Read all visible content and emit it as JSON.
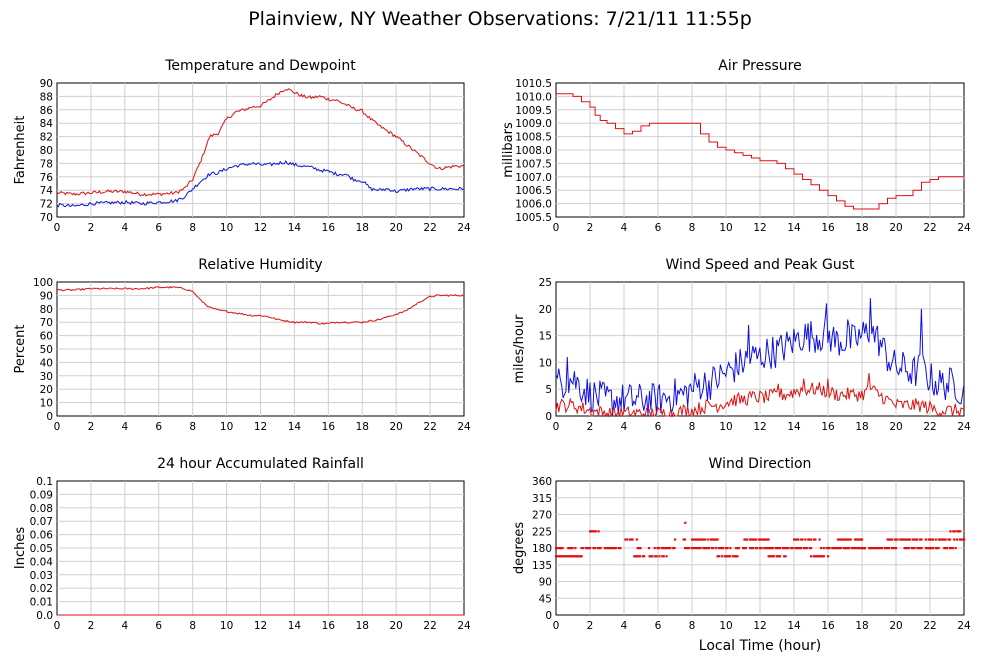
{
  "title": "Plainview, NY Weather Observations: 7/21/11 11:55p",
  "xlabel": "Local Time (hour)",
  "chart_data": [
    {
      "id": "temp",
      "type": "line",
      "title": "Temperature and Dewpoint",
      "ylabel": "Fahrenheit",
      "xlabel": "",
      "xlim": [
        0,
        24
      ],
      "ylim": [
        70,
        90
      ],
      "yticks": [
        "70",
        "72",
        "74",
        "76",
        "78",
        "80",
        "82",
        "84",
        "86",
        "88",
        "90"
      ],
      "xticks": [
        "0",
        "2",
        "4",
        "6",
        "8",
        "10",
        "12",
        "14",
        "16",
        "18",
        "20",
        "22",
        "24"
      ],
      "grid": true,
      "series": [
        {
          "color": "#e01010",
          "x": [
            0,
            1,
            2,
            3,
            4,
            5,
            6,
            7,
            7.5,
            8,
            8.5,
            9,
            9.5,
            10,
            10.5,
            11,
            11.5,
            12,
            12.5,
            13,
            13.5,
            14,
            14.5,
            15,
            15.5,
            16,
            16.5,
            17,
            17.5,
            18,
            18.5,
            19,
            19.5,
            20,
            20.5,
            21,
            21.5,
            22,
            22.5,
            23,
            23.5,
            24
          ],
          "y": [
            73.6,
            73.4,
            73.6,
            73.8,
            73.8,
            73.4,
            73.4,
            73.6,
            74.2,
            75.6,
            78.5,
            82.0,
            82.5,
            84.6,
            85.6,
            86.0,
            86.4,
            86.6,
            87.4,
            88.4,
            89.2,
            88.6,
            88.0,
            87.8,
            88.0,
            87.6,
            87.4,
            86.8,
            86.2,
            85.8,
            84.6,
            83.6,
            82.8,
            82.0,
            81.0,
            80.0,
            79.0,
            78.0,
            77.2,
            77.4,
            77.6,
            77.6
          ],
          "noise": 0.25
        },
        {
          "color": "#1010e0",
          "x": [
            0,
            1,
            2,
            3,
            4,
            5,
            6,
            7,
            7.5,
            8,
            8.5,
            9,
            9.5,
            10,
            10.5,
            11,
            11.5,
            12,
            12.5,
            13,
            13.5,
            14,
            14.5,
            15,
            15.5,
            16,
            16.5,
            17,
            17.5,
            18,
            18.5,
            19,
            19.5,
            20,
            20.5,
            21,
            21.5,
            22,
            22.5,
            23,
            23.5,
            24
          ],
          "y": [
            71.8,
            71.6,
            72.0,
            72.1,
            72.2,
            72.0,
            72.2,
            72.4,
            73.0,
            74.2,
            75.4,
            76.4,
            76.6,
            77.2,
            77.6,
            77.8,
            78.0,
            77.8,
            77.8,
            78.0,
            78.2,
            77.8,
            77.6,
            77.4,
            77.0,
            76.8,
            76.4,
            76.4,
            75.6,
            75.4,
            74.2,
            74.0,
            74.2,
            73.8,
            74.0,
            74.2,
            74.2,
            74.2,
            74.2,
            74.2,
            74.2,
            74.2
          ],
          "noise": 0.25
        }
      ]
    },
    {
      "id": "pressure",
      "type": "line",
      "title": "Air Pressure",
      "ylabel": "millibars",
      "xlabel": "",
      "xlim": [
        0,
        24
      ],
      "ylim": [
        1005.5,
        1010.5
      ],
      "yticks": [
        "1005.5",
        "1006.0",
        "1006.5",
        "1007.0",
        "1007.5",
        "1008.0",
        "1008.5",
        "1009.0",
        "1009.5",
        "1010.0",
        "1010.5"
      ],
      "xticks": [
        "0",
        "2",
        "4",
        "6",
        "8",
        "10",
        "12",
        "14",
        "16",
        "18",
        "20",
        "22",
        "24"
      ],
      "grid": true,
      "series": [
        {
          "color": "#e01010",
          "step": true,
          "x": [
            0,
            0.5,
            1,
            1.5,
            2,
            2.3,
            2.6,
            3,
            3.5,
            4,
            4.5,
            5,
            5.5,
            6,
            7,
            7.5,
            8,
            8.5,
            9,
            9.5,
            10,
            10.5,
            11,
            11.5,
            12,
            12.5,
            13,
            13.5,
            14,
            14.5,
            15,
            15.5,
            16,
            16.5,
            17,
            17.5,
            18,
            18.5,
            19,
            19.5,
            20,
            20.5,
            21,
            21.5,
            22,
            22.5,
            23,
            23.5,
            24
          ],
          "y": [
            1010.1,
            1010.1,
            1010.0,
            1009.8,
            1009.6,
            1009.3,
            1009.1,
            1009.0,
            1008.8,
            1008.6,
            1008.7,
            1008.9,
            1009.0,
            1009.0,
            1009.0,
            1009.0,
            1009.0,
            1008.6,
            1008.3,
            1008.1,
            1008.0,
            1007.9,
            1007.8,
            1007.7,
            1007.6,
            1007.6,
            1007.5,
            1007.3,
            1007.1,
            1006.9,
            1006.7,
            1006.5,
            1006.3,
            1006.1,
            1005.9,
            1005.8,
            1005.8,
            1005.8,
            1006.0,
            1006.2,
            1006.3,
            1006.3,
            1006.5,
            1006.8,
            1006.9,
            1007.0,
            1007.0,
            1007.0,
            1006.9
          ],
          "noise": 0
        }
      ]
    },
    {
      "id": "humidity",
      "type": "line",
      "title": "Relative Humidity",
      "ylabel": "Percent",
      "xlabel": "",
      "xlim": [
        0,
        24
      ],
      "ylim": [
        0,
        100
      ],
      "yticks": [
        "0",
        "10",
        "20",
        "30",
        "40",
        "50",
        "60",
        "70",
        "80",
        "90",
        "100"
      ],
      "xticks": [
        "0",
        "2",
        "4",
        "6",
        "8",
        "10",
        "12",
        "14",
        "16",
        "18",
        "20",
        "22",
        "24"
      ],
      "grid": true,
      "series": [
        {
          "color": "#e01010",
          "x": [
            0,
            1,
            2,
            3,
            4,
            5,
            6,
            7,
            7.5,
            8,
            8.5,
            9,
            9.5,
            10,
            10.5,
            11,
            11.5,
            12,
            12.5,
            13,
            13.5,
            14,
            14.5,
            15,
            15.5,
            16,
            16.5,
            17,
            17.5,
            18,
            18.5,
            19,
            19.5,
            20,
            20.5,
            21,
            21.5,
            22,
            22.5,
            23,
            23.5,
            24
          ],
          "y": [
            94,
            94,
            95,
            95,
            95,
            95,
            96,
            96,
            95,
            93,
            86,
            81,
            79,
            78,
            77,
            76,
            75,
            75,
            74,
            72,
            71,
            70,
            70,
            70,
            69,
            69,
            70,
            70,
            70,
            70,
            71,
            72,
            74,
            76,
            78,
            82,
            86,
            89,
            90,
            90,
            90,
            90
          ],
          "noise": 0.6
        }
      ]
    },
    {
      "id": "wind",
      "type": "line",
      "title": "Wind Speed and Peak Gust",
      "ylabel": "miles/hour",
      "xlabel": "",
      "xlim": [
        0,
        24
      ],
      "ylim": [
        0,
        25
      ],
      "yticks": [
        "0",
        "5",
        "10",
        "15",
        "20",
        "25"
      ],
      "xticks": [
        "0",
        "2",
        "4",
        "6",
        "8",
        "10",
        "12",
        "14",
        "16",
        "18",
        "20",
        "22",
        "24"
      ],
      "grid": true,
      "series": [
        {
          "color": "#1010e0",
          "x": [
            0,
            1,
            2,
            3,
            4,
            5,
            6,
            7,
            7.5,
            8,
            8.5,
            9,
            9.5,
            10,
            10.5,
            11,
            11.5,
            12,
            12.5,
            13,
            13.5,
            14,
            14.5,
            15,
            15.5,
            16,
            16.5,
            17,
            17.5,
            18,
            18.5,
            19,
            19.5,
            20,
            20.5,
            21,
            21.5,
            22,
            22.5,
            23,
            23.5,
            24
          ],
          "y": [
            6,
            7,
            4,
            3,
            3,
            3,
            3,
            4,
            4,
            5,
            6,
            6,
            7,
            8,
            9,
            10,
            11,
            11,
            12,
            12,
            13,
            14,
            15,
            15,
            15,
            15,
            14,
            14,
            14,
            15,
            16,
            14,
            11,
            9,
            9,
            8,
            9,
            7,
            6,
            6,
            6,
            4
          ],
          "noise": 3.2,
          "peaks": [
            [
              0.7,
              11
            ],
            [
              15.9,
              21
            ],
            [
              18.5,
              22
            ],
            [
              21.5,
              20
            ],
            [
              11.3,
              17
            ],
            [
              17.2,
              18
            ]
          ]
        },
        {
          "color": "#e01010",
          "x": [
            0,
            1,
            2,
            3,
            4,
            5,
            6,
            7,
            7.5,
            8,
            8.5,
            9,
            9.5,
            10,
            10.5,
            11,
            11.5,
            12,
            12.5,
            13,
            13.5,
            14,
            14.5,
            15,
            15.5,
            16,
            16.5,
            17,
            17.5,
            18,
            18.5,
            19,
            19.5,
            20,
            20.5,
            21,
            21.5,
            22,
            22.5,
            23,
            23.5,
            24
          ],
          "y": [
            2,
            2,
            1,
            0.5,
            0.5,
            0.5,
            0.5,
            0.5,
            1,
            1,
            1.5,
            2,
            2,
            2.5,
            3,
            3,
            3.5,
            3.5,
            3.5,
            4,
            4,
            4.5,
            5,
            5,
            5,
            4.5,
            4,
            4,
            4,
            4,
            5,
            4,
            3,
            2,
            2,
            2,
            2,
            1.5,
            1,
            1,
            1,
            1
          ],
          "noise": 1.3,
          "peaks": [
            [
              16.0,
              7
            ],
            [
              18.4,
              8
            ],
            [
              13.1,
              6
            ],
            [
              14.6,
              7
            ]
          ]
        }
      ]
    },
    {
      "id": "rain",
      "type": "line",
      "title": "24 hour Accumulated Rainfall",
      "ylabel": "Inches",
      "xlabel": "",
      "xlim": [
        0,
        24
      ],
      "ylim": [
        0,
        0.1
      ],
      "yticks": [
        "0.0",
        "0.01",
        "0.02",
        "0.03",
        "0.04",
        "0.05",
        "0.06",
        "0.07",
        "0.08",
        "0.09",
        "0.1"
      ],
      "xticks": [
        "0",
        "2",
        "4",
        "6",
        "8",
        "10",
        "12",
        "14",
        "16",
        "18",
        "20",
        "22",
        "24"
      ],
      "grid": true,
      "series": [
        {
          "color": "#e01010",
          "x": [
            0,
            24
          ],
          "y": [
            0,
            0
          ],
          "noise": 0
        }
      ]
    },
    {
      "id": "direction",
      "type": "scatter",
      "title": "Wind Direction",
      "ylabel": "degrees",
      "xlabel": "Local Time (hour)",
      "xlim": [
        0,
        24
      ],
      "ylim": [
        0,
        360
      ],
      "yticks": [
        "0",
        "45",
        "90",
        "135",
        "180",
        "225",
        "270",
        "315",
        "360"
      ],
      "xticks": [
        "0",
        "2",
        "4",
        "6",
        "8",
        "10",
        "12",
        "14",
        "16",
        "18",
        "20",
        "22",
        "24"
      ],
      "grid": true,
      "series": [
        {
          "color": "#e01010",
          "segments": [
            [
              0.0,
              0.3,
              180
            ],
            [
              0.0,
              1.5,
              158
            ],
            [
              0.3,
              1.2,
              180
            ],
            [
              1.5,
              2.0,
              180
            ],
            [
              2.0,
              2.5,
              225
            ],
            [
              2.2,
              4.0,
              180
            ],
            [
              4.0,
              4.8,
              203
            ],
            [
              4.6,
              5.2,
              158
            ],
            [
              4.8,
              5.5,
              180
            ],
            [
              5.5,
              6.5,
              158
            ],
            [
              5.8,
              7.0,
              180
            ],
            [
              7.0,
              7.6,
              203
            ],
            [
              7.6,
              7.7,
              248
            ],
            [
              7.5,
              9.0,
              180
            ],
            [
              8.0,
              9.5,
              203
            ],
            [
              9.0,
              10.5,
              180
            ],
            [
              9.5,
              10.8,
              158
            ],
            [
              10.5,
              12.0,
              180
            ],
            [
              11.0,
              12.5,
              203
            ],
            [
              12.0,
              13.5,
              180
            ],
            [
              12.5,
              13.5,
              158
            ],
            [
              13.5,
              15.0,
              180
            ],
            [
              14.0,
              15.5,
              203
            ],
            [
              15.0,
              16.0,
              158
            ],
            [
              15.5,
              17.0,
              180
            ],
            [
              16.5,
              18.0,
              203
            ],
            [
              17.0,
              18.5,
              180
            ],
            [
              18.0,
              20.0,
              180
            ],
            [
              19.5,
              21.0,
              203
            ],
            [
              20.5,
              22.0,
              180
            ],
            [
              21.0,
              23.0,
              203
            ],
            [
              22.0,
              23.5,
              180
            ],
            [
              23.0,
              24.0,
              203
            ],
            [
              23.2,
              23.5,
              225
            ],
            [
              23.6,
              23.8,
              225
            ]
          ]
        }
      ]
    }
  ]
}
